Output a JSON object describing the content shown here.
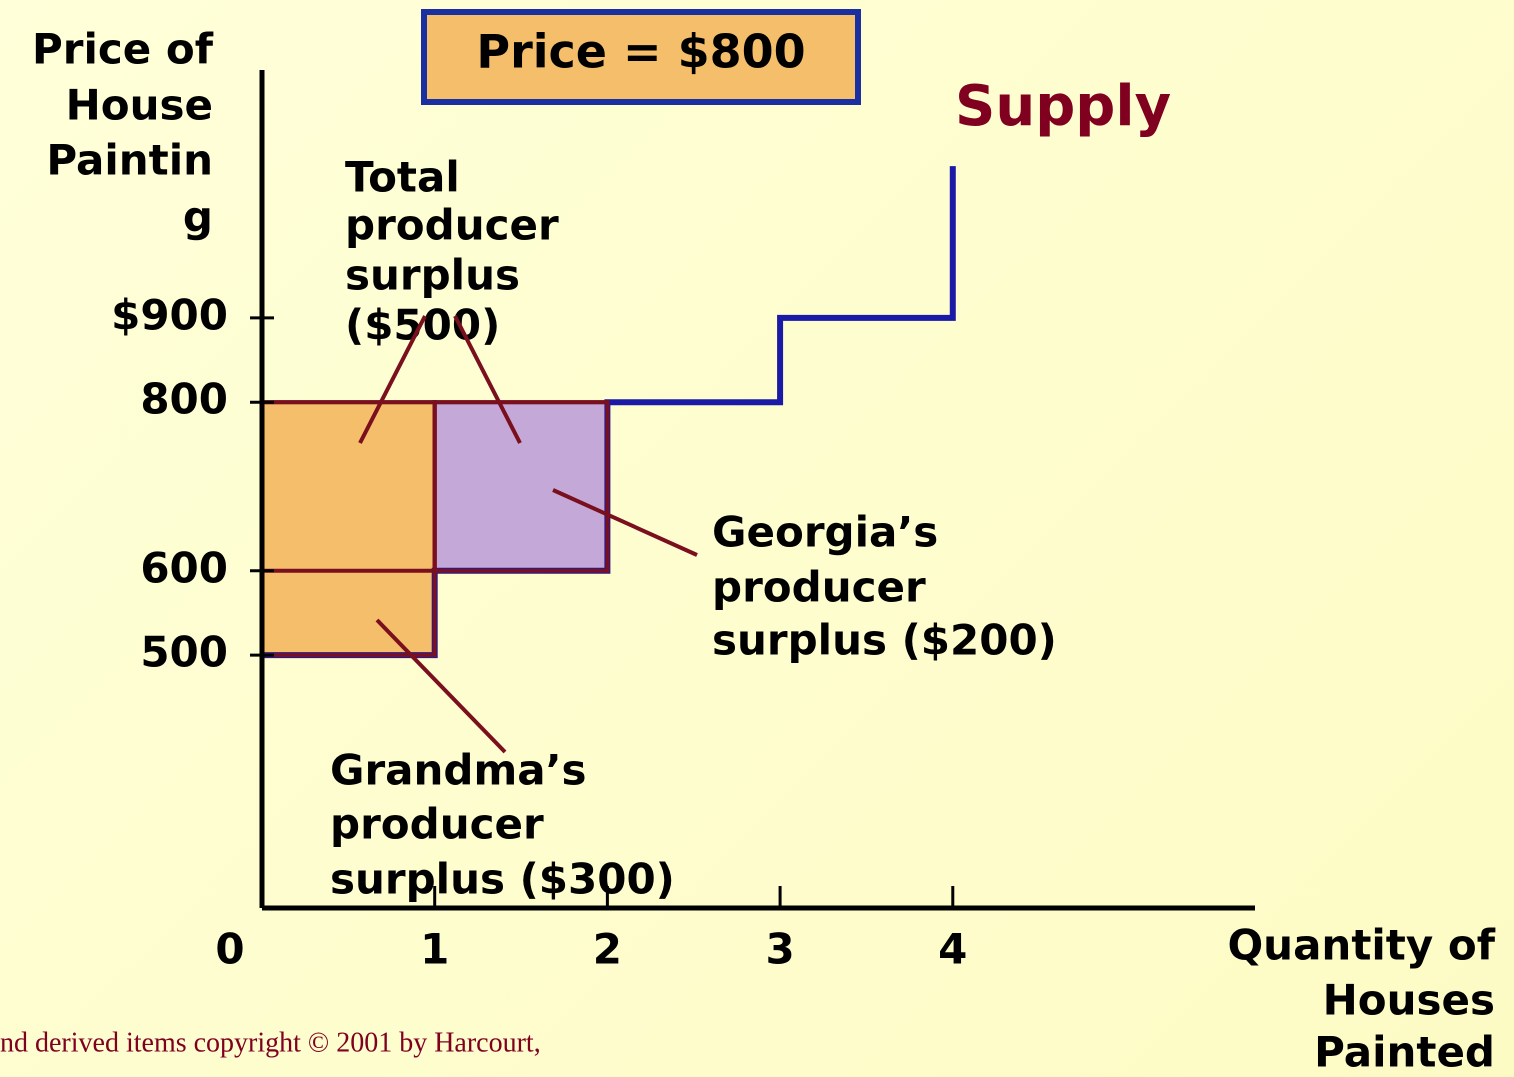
{
  "chart_data": {
    "type": "line",
    "title": "Price = $800",
    "ylabel": [
      "Price of",
      "House",
      "Paintin",
      "g"
    ],
    "xlabel": [
      "Quantity of",
      "Houses",
      "Painted"
    ],
    "series": [
      {
        "name": "Supply",
        "color": "#1a1aa6",
        "x": [
          0,
          1,
          1,
          2,
          2,
          3,
          3,
          4,
          4
        ],
        "values": [
          500,
          500,
          600,
          600,
          800,
          800,
          900,
          900,
          1080
        ]
      }
    ],
    "rects": [
      {
        "x": [
          0,
          1
        ],
        "y": [
          500,
          800
        ],
        "color": "#f5be6a"
      },
      {
        "x": [
          1,
          2
        ],
        "y": [
          600,
          800
        ],
        "color": "#c4a9d8"
      }
    ],
    "reference_lines": [
      {
        "x": [
          0,
          1
        ],
        "y": 600
      }
    ],
    "annotations": {
      "total": [
        "Total",
        "producer",
        "surplus",
        "($500)"
      ],
      "georgia": [
        "Georgia’s",
        "producer",
        "surplus ($200)"
      ],
      "grandma": [
        "Grandma’s",
        "producer",
        "surplus ($300)"
      ]
    },
    "xlim": [
      0,
      5.75
    ],
    "ylim": [
      200,
      1200
    ],
    "xticks": [
      0,
      1,
      2,
      3,
      4
    ],
    "yticks": [
      {
        "value": 900,
        "label": "$900"
      },
      800,
      600,
      500
    ],
    "footer": "nd derived items copyright © 2001 by Harcourt,"
  }
}
